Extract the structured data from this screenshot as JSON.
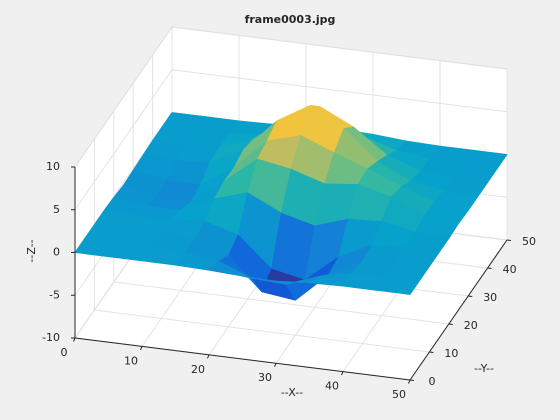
{
  "chart_data": {
    "type": "surface",
    "title": "frame0003.jpg",
    "x_label": "--X--",
    "y_label": "--Y--",
    "z_label": "--Z--",
    "x": [
      0,
      5,
      10,
      15,
      20,
      25,
      30,
      35,
      40,
      45,
      50
    ],
    "y": [
      0,
      5,
      10,
      15,
      20,
      25,
      30,
      35,
      40,
      45,
      50
    ],
    "z": [
      [
        0,
        0,
        0,
        0,
        -0.1,
        -0.3,
        -0.4,
        -0.1,
        0,
        0,
        0
      ],
      [
        0,
        0,
        0,
        -0.1,
        -0.7,
        -2.2,
        -2.4,
        -1.0,
        -0.1,
        0,
        0
      ],
      [
        0,
        0,
        0,
        -0.2,
        -1.7,
        -5.4,
        -5.9,
        -2.4,
        -0.4,
        0,
        0
      ],
      [
        0,
        -0.1,
        -0.1,
        0.2,
        -0.9,
        -4.4,
        -5.2,
        -2.0,
        -0.1,
        0,
        0
      ],
      [
        -0.1,
        -0.6,
        -0.6,
        1.2,
        2.4,
        0.5,
        -0.5,
        0.8,
        1.0,
        0.3,
        0
      ],
      [
        -0.3,
        -1.2,
        -1.4,
        1.6,
        4.7,
        4.0,
        2.8,
        3.2,
        2.2,
        0.6,
        0.1
      ],
      [
        -0.2,
        -0.9,
        -1.0,
        1.5,
        5.2,
        6.3,
        4.8,
        3.4,
        1.8,
        0.5,
        0
      ],
      [
        -0.1,
        -0.2,
        0,
        2.0,
        5.9,
        8.2,
        6.0,
        2.6,
        0.8,
        0.2,
        0
      ],
      [
        0,
        0,
        0.2,
        1.6,
        4.5,
        6.4,
        4.5,
        1.7,
        0.3,
        0,
        0
      ],
      [
        0,
        0,
        0.1,
        0.6,
        1.8,
        2.6,
        1.8,
        0.6,
        0.1,
        0,
        0
      ],
      [
        0,
        0,
        0,
        0.1,
        0.4,
        0.5,
        0.4,
        0.1,
        0,
        0,
        0
      ]
    ],
    "xlim": [
      0,
      50
    ],
    "ylim": [
      0,
      50
    ],
    "zlim": [
      -10,
      10
    ],
    "xticks": [
      0,
      10,
      20,
      30,
      40,
      50
    ],
    "yticks": [
      0,
      10,
      20,
      30,
      40,
      50
    ],
    "zticks": [
      -10,
      -5,
      0,
      5,
      10
    ],
    "grid": true,
    "colormap": "parula"
  }
}
